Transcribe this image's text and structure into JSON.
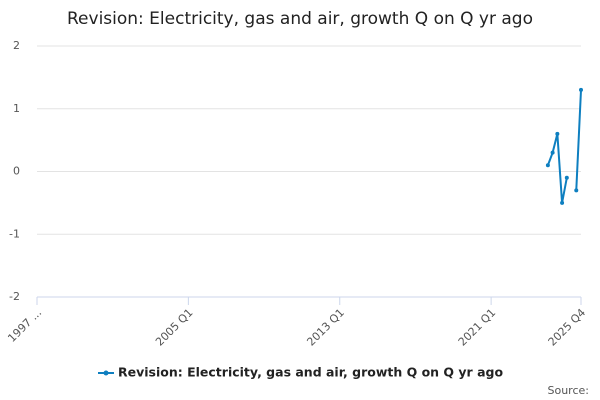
{
  "chart_data": {
    "type": "line",
    "title": "Revision: Electricity, gas and air, growth Q on Q yr ago",
    "categories": [
      "1997 ...",
      null,
      null,
      null,
      null,
      null,
      null,
      null,
      null,
      null,
      null,
      null,
      null,
      null,
      null,
      null,
      null,
      null,
      null,
      null,
      null,
      null,
      null,
      null,
      null,
      null,
      null,
      null,
      null,
      null,
      null,
      null,
      "2005 Q1",
      null,
      null,
      null,
      null,
      null,
      null,
      null,
      null,
      null,
      null,
      null,
      null,
      null,
      null,
      null,
      null,
      null,
      null,
      null,
      null,
      null,
      null,
      null,
      null,
      null,
      null,
      null,
      null,
      null,
      null,
      null,
      "2013 Q1",
      null,
      null,
      null,
      null,
      null,
      null,
      null,
      null,
      null,
      null,
      null,
      null,
      null,
      null,
      null,
      null,
      null,
      null,
      null,
      null,
      null,
      null,
      null,
      null,
      null,
      null,
      null,
      null,
      null,
      null,
      null,
      "2021 Q1",
      null,
      null,
      null,
      null,
      null,
      null,
      null,
      null,
      null,
      null,
      null,
      null,
      null,
      null,
      null,
      null,
      null,
      null,
      "2025 Q4"
    ],
    "series": [
      {
        "name": "Revision: Electricity, gas and air, growth Q on Q yr ago",
        "color": "#0e7fc0",
        "values": [
          null,
          null,
          null,
          null,
          null,
          null,
          null,
          null,
          null,
          null,
          null,
          null,
          null,
          null,
          null,
          null,
          null,
          null,
          null,
          null,
          null,
          null,
          null,
          null,
          null,
          null,
          null,
          null,
          null,
          null,
          null,
          null,
          null,
          null,
          null,
          null,
          null,
          null,
          null,
          null,
          null,
          null,
          null,
          null,
          null,
          null,
          null,
          null,
          null,
          null,
          null,
          null,
          null,
          null,
          null,
          null,
          null,
          null,
          null,
          null,
          null,
          null,
          null,
          null,
          null,
          null,
          null,
          null,
          null,
          null,
          null,
          null,
          null,
          null,
          null,
          null,
          null,
          null,
          null,
          null,
          null,
          null,
          null,
          null,
          null,
          null,
          null,
          null,
          null,
          null,
          null,
          null,
          null,
          null,
          null,
          null,
          null,
          null,
          null,
          null,
          null,
          null,
          null,
          null,
          null,
          null,
          null,
          null,
          0.1,
          0.3,
          0.6,
          -0.5,
          -0.1,
          null,
          -0.3,
          1.3
        ]
      }
    ],
    "ylim": [
      -2,
      2
    ],
    "yticks": [
      -2,
      -1,
      0,
      1,
      2
    ],
    "grid": true,
    "source": "Source:"
  }
}
